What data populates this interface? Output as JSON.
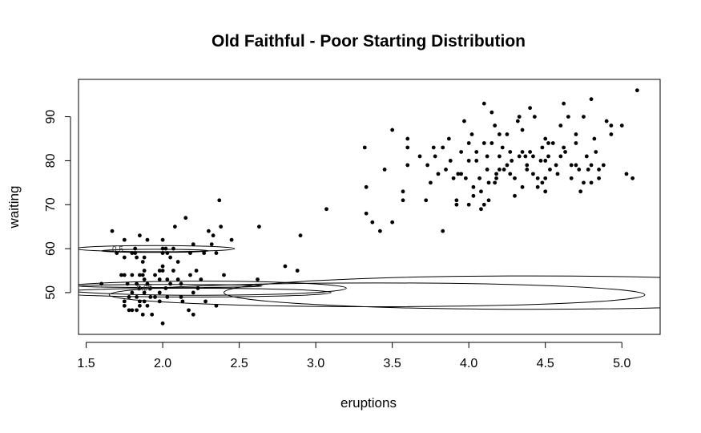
{
  "chart_data": {
    "type": "scatter",
    "title": "Old Faithful - Poor Starting Distribution",
    "xlabel": "eruptions",
    "ylabel": "waiting",
    "xlim": [
      1.45,
      5.25
    ],
    "ylim": [
      40.5,
      98.5
    ],
    "xticks": [
      "1.5",
      "2.0",
      "2.5",
      "3.0",
      "3.5",
      "4.0",
      "4.5",
      "5.0"
    ],
    "yticks": [
      "50",
      "60",
      "70",
      "80",
      "90"
    ],
    "grid": false,
    "legend": "none",
    "point_color": "#000000",
    "points": [
      [
        1.6,
        52
      ],
      [
        1.67,
        64
      ],
      [
        1.7,
        59
      ],
      [
        1.73,
        54
      ],
      [
        1.75,
        62
      ],
      [
        1.75,
        58
      ],
      [
        1.75,
        54
      ],
      [
        1.75,
        48
      ],
      [
        1.75,
        47
      ],
      [
        1.77,
        52
      ],
      [
        1.78,
        49
      ],
      [
        1.78,
        46
      ],
      [
        1.8,
        59
      ],
      [
        1.8,
        54
      ],
      [
        1.8,
        50
      ],
      [
        1.8,
        46
      ],
      [
        1.82,
        60
      ],
      [
        1.82,
        59
      ],
      [
        1.83,
        58
      ],
      [
        1.83,
        52
      ],
      [
        1.83,
        49
      ],
      [
        1.83,
        46
      ],
      [
        1.85,
        63
      ],
      [
        1.85,
        54
      ],
      [
        1.85,
        51
      ],
      [
        1.85,
        48
      ],
      [
        1.85,
        47
      ],
      [
        1.87,
        57
      ],
      [
        1.87,
        54
      ],
      [
        1.87,
        45
      ],
      [
        1.88,
        58
      ],
      [
        1.88,
        55
      ],
      [
        1.88,
        53
      ],
      [
        1.88,
        50
      ],
      [
        1.88,
        48
      ],
      [
        1.9,
        62
      ],
      [
        1.9,
        52
      ],
      [
        1.9,
        47
      ],
      [
        1.92,
        51
      ],
      [
        1.92,
        49
      ],
      [
        1.93,
        45
      ],
      [
        1.95,
        54
      ],
      [
        1.95,
        49
      ],
      [
        1.98,
        55
      ],
      [
        1.98,
        53
      ],
      [
        1.98,
        50
      ],
      [
        1.98,
        48
      ],
      [
        2.0,
        62
      ],
      [
        2.0,
        60
      ],
      [
        2.0,
        59
      ],
      [
        2.0,
        56
      ],
      [
        2.0,
        55
      ],
      [
        2.0,
        43
      ],
      [
        2.02,
        60
      ],
      [
        2.02,
        51
      ],
      [
        2.03,
        59
      ],
      [
        2.03,
        53
      ],
      [
        2.03,
        49
      ],
      [
        2.05,
        58
      ],
      [
        2.05,
        52
      ],
      [
        2.07,
        60
      ],
      [
        2.07,
        55
      ],
      [
        2.08,
        65
      ],
      [
        2.1,
        57
      ],
      [
        2.1,
        53
      ],
      [
        2.12,
        52
      ],
      [
        2.12,
        49
      ],
      [
        2.13,
        48
      ],
      [
        2.15,
        67
      ],
      [
        2.17,
        46
      ],
      [
        2.18,
        59
      ],
      [
        2.18,
        54
      ],
      [
        2.2,
        61
      ],
      [
        2.2,
        50
      ],
      [
        2.2,
        45
      ],
      [
        2.22,
        55
      ],
      [
        2.23,
        51
      ],
      [
        2.25,
        53
      ],
      [
        2.27,
        59
      ],
      [
        2.28,
        48
      ],
      [
        2.3,
        64
      ],
      [
        2.32,
        61
      ],
      [
        2.33,
        63
      ],
      [
        2.35,
        59
      ],
      [
        2.35,
        47
      ],
      [
        2.37,
        71
      ],
      [
        2.38,
        65
      ],
      [
        2.4,
        54
      ],
      [
        2.45,
        62
      ],
      [
        2.62,
        53
      ],
      [
        2.63,
        65
      ],
      [
        2.8,
        56
      ],
      [
        2.88,
        55
      ],
      [
        2.9,
        63
      ],
      [
        3.07,
        69
      ],
      [
        3.32,
        83
      ],
      [
        3.33,
        74
      ],
      [
        3.33,
        68
      ],
      [
        3.37,
        66
      ],
      [
        3.42,
        64
      ],
      [
        3.45,
        78
      ],
      [
        3.5,
        66
      ],
      [
        3.5,
        87
      ],
      [
        3.57,
        73
      ],
      [
        3.57,
        71
      ],
      [
        3.6,
        85
      ],
      [
        3.6,
        79
      ],
      [
        3.6,
        83
      ],
      [
        3.68,
        81
      ],
      [
        3.72,
        71
      ],
      [
        3.73,
        79
      ],
      [
        3.75,
        75
      ],
      [
        3.77,
        83
      ],
      [
        3.78,
        81
      ],
      [
        3.8,
        77
      ],
      [
        3.83,
        64
      ],
      [
        3.83,
        83
      ],
      [
        3.85,
        78
      ],
      [
        3.87,
        85
      ],
      [
        3.88,
        80
      ],
      [
        3.9,
        76
      ],
      [
        3.92,
        71
      ],
      [
        3.92,
        70
      ],
      [
        3.93,
        77
      ],
      [
        3.95,
        82
      ],
      [
        3.95,
        77
      ],
      [
        3.97,
        89
      ],
      [
        3.98,
        76
      ],
      [
        4.0,
        84
      ],
      [
        4.0,
        80
      ],
      [
        4.0,
        70
      ],
      [
        4.02,
        86
      ],
      [
        4.03,
        74
      ],
      [
        4.03,
        72
      ],
      [
        4.05,
        82
      ],
      [
        4.05,
        80
      ],
      [
        4.07,
        76
      ],
      [
        4.08,
        73
      ],
      [
        4.08,
        69
      ],
      [
        4.1,
        93
      ],
      [
        4.1,
        84
      ],
      [
        4.1,
        70
      ],
      [
        4.12,
        81
      ],
      [
        4.12,
        78
      ],
      [
        4.13,
        75
      ],
      [
        4.13,
        71
      ],
      [
        4.15,
        91
      ],
      [
        4.15,
        84
      ],
      [
        4.17,
        88
      ],
      [
        4.17,
        75
      ],
      [
        4.18,
        77
      ],
      [
        4.18,
        76
      ],
      [
        4.2,
        86
      ],
      [
        4.2,
        81
      ],
      [
        4.2,
        78
      ],
      [
        4.22,
        83
      ],
      [
        4.23,
        78
      ],
      [
        4.25,
        86
      ],
      [
        4.25,
        79
      ],
      [
        4.27,
        82
      ],
      [
        4.27,
        77
      ],
      [
        4.28,
        80
      ],
      [
        4.3,
        76
      ],
      [
        4.3,
        72
      ],
      [
        4.32,
        89
      ],
      [
        4.33,
        90
      ],
      [
        4.33,
        81
      ],
      [
        4.35,
        87
      ],
      [
        4.35,
        82
      ],
      [
        4.35,
        74
      ],
      [
        4.37,
        81
      ],
      [
        4.38,
        79
      ],
      [
        4.38,
        78
      ],
      [
        4.4,
        82
      ],
      [
        4.4,
        92
      ],
      [
        4.42,
        81
      ],
      [
        4.42,
        77
      ],
      [
        4.43,
        90
      ],
      [
        4.45,
        76
      ],
      [
        4.45,
        74
      ],
      [
        4.47,
        80
      ],
      [
        4.48,
        83
      ],
      [
        4.48,
        75
      ],
      [
        4.5,
        85
      ],
      [
        4.5,
        80
      ],
      [
        4.5,
        76
      ],
      [
        4.5,
        73
      ],
      [
        4.52,
        84
      ],
      [
        4.52,
        81
      ],
      [
        4.53,
        78
      ],
      [
        4.55,
        84
      ],
      [
        4.57,
        79
      ],
      [
        4.58,
        77
      ],
      [
        4.6,
        88
      ],
      [
        4.6,
        81
      ],
      [
        4.62,
        93
      ],
      [
        4.62,
        83
      ],
      [
        4.63,
        82
      ],
      [
        4.65,
        90
      ],
      [
        4.67,
        79
      ],
      [
        4.67,
        76
      ],
      [
        4.7,
        86
      ],
      [
        4.7,
        84
      ],
      [
        4.7,
        79
      ],
      [
        4.72,
        78
      ],
      [
        4.73,
        73
      ],
      [
        4.75,
        90
      ],
      [
        4.75,
        75
      ],
      [
        4.77,
        81
      ],
      [
        4.78,
        78
      ],
      [
        4.8,
        94
      ],
      [
        4.8,
        79
      ],
      [
        4.8,
        75
      ],
      [
        4.82,
        85
      ],
      [
        4.83,
        82
      ],
      [
        4.85,
        78
      ],
      [
        4.85,
        76
      ],
      [
        4.88,
        79
      ],
      [
        4.9,
        89
      ],
      [
        4.93,
        88
      ],
      [
        4.93,
        86
      ],
      [
        5.0,
        88
      ],
      [
        5.03,
        77
      ],
      [
        5.07,
        76
      ],
      [
        5.1,
        96
      ]
    ],
    "contours": [
      {
        "label": "0.5",
        "center": [
          1.95,
          60
        ],
        "half_width_x": 0.52,
        "half_height_y": 0.7
      },
      {
        "label": "",
        "center": [
          1.95,
          59.5
        ],
        "half_width_x": 0.35,
        "half_height_y": 0.35
      },
      {
        "label": "",
        "center": [
          2.2,
          50
        ],
        "half_width_x": 0.9,
        "half_height_y": 1.0
      },
      {
        "label": "",
        "center": [
          2.05,
          51.5
        ],
        "half_width_x": 0.6,
        "half_height_y": 0.35
      },
      {
        "label": "",
        "center": [
          2.25,
          51
        ],
        "half_width_x": 0.95,
        "half_height_y": 1.6
      },
      {
        "label": "",
        "center": [
          3.4,
          49.5
        ],
        "half_width_x": 1.75,
        "half_height_y": 2.7
      },
      {
        "label": "",
        "center": [
          4.4,
          50
        ],
        "half_width_x": 2.0,
        "half_height_y": 3.8
      }
    ],
    "contour_text_labels": [
      {
        "text": "0.5",
        "at": [
          1.67,
          59.8
        ]
      },
      {
        "text": "0.05",
        "at": [
          1.83,
          51.0
        ]
      }
    ]
  }
}
